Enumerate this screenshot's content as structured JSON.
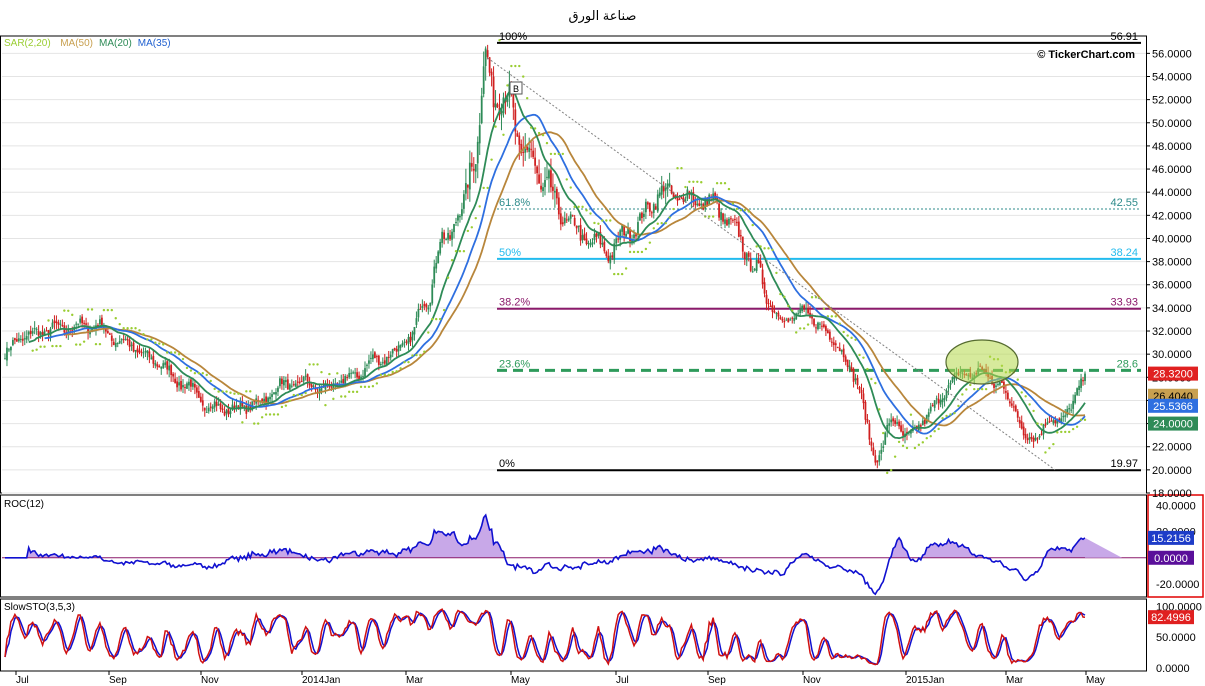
{
  "window": {
    "title": "صناعة الورق"
  },
  "watermark": "© TickerChart.com",
  "legend": {
    "items": [
      {
        "label": "SAR(2,20)",
        "color": "#9acd32"
      },
      {
        "label": "MA(50)",
        "color": "#c8a050"
      },
      {
        "label": "MA(20)",
        "color": "#2e8b57"
      },
      {
        "label": "MA(35)",
        "color": "#1f60d0"
      }
    ]
  },
  "colors": {
    "up": "#2e8b57",
    "down": "#d02020",
    "ma50": "#b8863b",
    "ma20": "#2e8b57",
    "ma35": "#2e6fe0",
    "sar": "#9acd32",
    "roc": "#1010d0",
    "roc_fill": "#c8a8e8",
    "sto_k": "#d01010",
    "sto_d": "#1010d0"
  },
  "x_months": [
    "Jul",
    "Sep",
    "Nov",
    "2014Jan",
    "Mar",
    "May",
    "Jul",
    "Sep",
    "Nov",
    "2015Jan",
    "Mar",
    "May"
  ],
  "price_axis": {
    "ticks": [
      "56.0000",
      "54.0000",
      "52.0000",
      "50.0000",
      "48.0000",
      "46.0000",
      "44.0000",
      "42.0000",
      "40.0000",
      "38.0000",
      "36.0000",
      "34.0000",
      "32.0000",
      "30.0000",
      "28.0000",
      "26.0000",
      "24.0000",
      "22.0000",
      "20.0000",
      "18.0000"
    ],
    "badges": [
      {
        "text": "28.3200",
        "value": 28.32,
        "bg": "#e02020",
        "fg": "#ffffff"
      },
      {
        "text": "26.4040",
        "value": 26.404,
        "bg": "#c8a050",
        "fg": "#000000"
      },
      {
        "text": "24.0000",
        "value": 24.0,
        "bg": "#2e8b57",
        "fg": "#ffffff"
      },
      {
        "text": "25.5366",
        "value": 25.5366,
        "bg": "#2e6fe0",
        "fg": "#ffffff"
      }
    ]
  },
  "fib": {
    "levels": [
      {
        "pct": "100%",
        "value": "56.91",
        "price": 56.91,
        "color": "#000000",
        "dash": "",
        "width": 2
      },
      {
        "pct": "61.8%",
        "value": "42.55",
        "price": 42.55,
        "color": "#2e8b8b",
        "dash": "2,2",
        "width": 1
      },
      {
        "pct": "50%",
        "value": "38.24",
        "price": 38.24,
        "color": "#22bbee",
        "dash": "",
        "width": 2
      },
      {
        "pct": "38.2%",
        "value": "33.93",
        "price": 33.93,
        "color": "#8b1a6b",
        "dash": "",
        "width": 2
      },
      {
        "pct": "23.6%",
        "value": "28.6",
        "price": 28.6,
        "color": "#2e9b5b",
        "dash": "10,6",
        "width": 3
      },
      {
        "pct": "0%",
        "value": "19.97",
        "price": 19.97,
        "color": "#000000",
        "dash": "",
        "width": 2
      }
    ]
  },
  "marker": {
    "label": "B"
  },
  "roc": {
    "label": "ROC(12)",
    "ticks": [
      "40.0000",
      "20.0000",
      "0.0000",
      "-20.0000"
    ],
    "badges": [
      {
        "text": "15.2156",
        "bg": "#1e3cc8"
      },
      {
        "text": "0.0000",
        "bg": "#5a0f9a"
      }
    ]
  },
  "sto": {
    "label": "SlowSTO(3,5,3)",
    "ticks": [
      "100.0000",
      "50.0000",
      "0.0000"
    ],
    "badges": [
      {
        "text": "82.4996",
        "bg": "#e02020"
      }
    ]
  },
  "chart_data": {
    "type": "candlestick",
    "title": "صناعة الورق",
    "price_range": [
      18,
      57.5
    ],
    "anchors": [
      {
        "t": 0,
        "v": 30.0
      },
      {
        "t": 8,
        "v": 31.5
      },
      {
        "t": 25,
        "v": 32.2
      },
      {
        "t": 45,
        "v": 32.5
      },
      {
        "t": 60,
        "v": 31.0
      },
      {
        "t": 75,
        "v": 29.5
      },
      {
        "t": 90,
        "v": 27.5
      },
      {
        "t": 103,
        "v": 25.5
      },
      {
        "t": 115,
        "v": 25.2
      },
      {
        "t": 128,
        "v": 25.8
      },
      {
        "t": 140,
        "v": 27.3
      },
      {
        "t": 152,
        "v": 27.5
      },
      {
        "t": 162,
        "v": 27.0
      },
      {
        "t": 175,
        "v": 28.0
      },
      {
        "t": 188,
        "v": 29.5
      },
      {
        "t": 196,
        "v": 30.0
      },
      {
        "t": 205,
        "v": 31.5
      },
      {
        "t": 213,
        "v": 35.0
      },
      {
        "t": 222,
        "v": 40.0
      },
      {
        "t": 230,
        "v": 42.0
      },
      {
        "t": 238,
        "v": 48.0
      },
      {
        "t": 243,
        "v": 55.0
      },
      {
        "t": 247,
        "v": 53.0
      },
      {
        "t": 255,
        "v": 51.5
      },
      {
        "t": 262,
        "v": 47.5
      },
      {
        "t": 272,
        "v": 45.0
      },
      {
        "t": 282,
        "v": 42.0
      },
      {
        "t": 293,
        "v": 40.0
      },
      {
        "t": 305,
        "v": 39.0
      },
      {
        "t": 318,
        "v": 41.0
      },
      {
        "t": 332,
        "v": 44.0
      },
      {
        "t": 345,
        "v": 43.5
      },
      {
        "t": 358,
        "v": 43.0
      },
      {
        "t": 370,
        "v": 40.5
      },
      {
        "t": 380,
        "v": 37.0
      },
      {
        "t": 392,
        "v": 33.0
      },
      {
        "t": 405,
        "v": 33.5
      },
      {
        "t": 418,
        "v": 31.5
      },
      {
        "t": 430,
        "v": 28.0
      },
      {
        "t": 440,
        "v": 21.0
      },
      {
        "t": 448,
        "v": 24.0
      },
      {
        "t": 458,
        "v": 23.0
      },
      {
        "t": 470,
        "v": 25.5
      },
      {
        "t": 480,
        "v": 28.0
      },
      {
        "t": 492,
        "v": 28.5
      },
      {
        "t": 502,
        "v": 27.5
      },
      {
        "t": 510,
        "v": 25.5
      },
      {
        "t": 517,
        "v": 22.5
      },
      {
        "t": 528,
        "v": 24.0
      },
      {
        "t": 538,
        "v": 25.0
      },
      {
        "t": 546,
        "v": 28.3
      }
    ],
    "bars": 547,
    "x_labels": [
      "Jul",
      "Sep",
      "Nov",
      "2014Jan",
      "Mar",
      "May",
      "Jul",
      "Sep",
      "Nov",
      "2015Jan",
      "Mar",
      "May"
    ],
    "last": {
      "close": 28.32,
      "ma50": 26.404,
      "ma20": 24.0,
      "ma35": 25.5366
    },
    "fibonacci": [
      {
        "level": "100%",
        "price": 56.91
      },
      {
        "level": "61.8%",
        "price": 42.55
      },
      {
        "level": "50%",
        "price": 38.24
      },
      {
        "level": "38.2%",
        "price": 33.93
      },
      {
        "level": "23.6%",
        "price": 28.6
      },
      {
        "level": "0%",
        "price": 19.97
      }
    ],
    "roc": {
      "period": 12,
      "last": 15.2156,
      "range": [
        -30,
        48
      ]
    },
    "slow_sto": {
      "params": "3,5,3",
      "last": 82.4996,
      "range": [
        -5,
        112
      ]
    }
  }
}
